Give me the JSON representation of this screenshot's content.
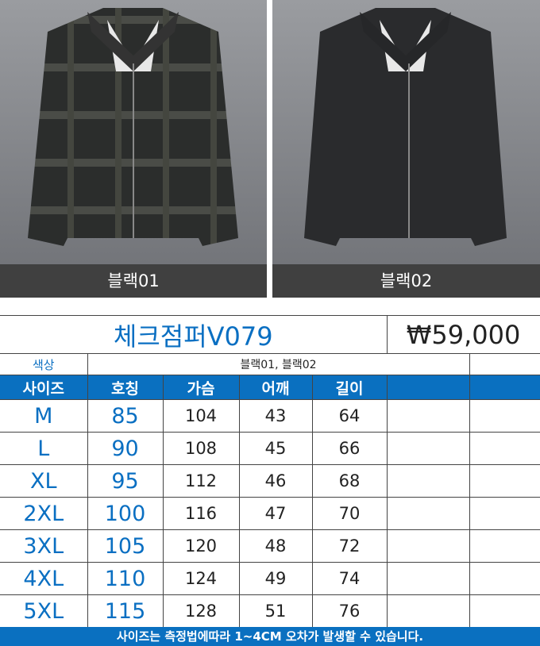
{
  "photos": [
    {
      "label": "블랙01",
      "pattern": "check"
    },
    {
      "label": "블랙02",
      "pattern": "solid"
    }
  ],
  "product": {
    "name": "체크점퍼V079",
    "price": "₩59,000",
    "color_label": "색상",
    "colors": "블랙01, 블랙02"
  },
  "headers": [
    "사이즈",
    "호칭",
    "가슴",
    "어깨",
    "길이",
    "",
    ""
  ],
  "rows": [
    [
      "M",
      "85",
      "104",
      "43",
      "64"
    ],
    [
      "L",
      "90",
      "108",
      "45",
      "66"
    ],
    [
      "XL",
      "95",
      "112",
      "46",
      "68"
    ],
    [
      "2XL",
      "100",
      "116",
      "47",
      "70"
    ],
    [
      "3XL",
      "105",
      "120",
      "48",
      "72"
    ],
    [
      "4XL",
      "110",
      "124",
      "49",
      "74"
    ],
    [
      "5XL",
      "115",
      "128",
      "51",
      "76"
    ]
  ],
  "footer": "사이즈는 측정법에따라 1~4CM 오차가 발생할 수 있습니다.",
  "colors": {
    "accent": "#0a70c0",
    "label_bar": "#404040"
  }
}
